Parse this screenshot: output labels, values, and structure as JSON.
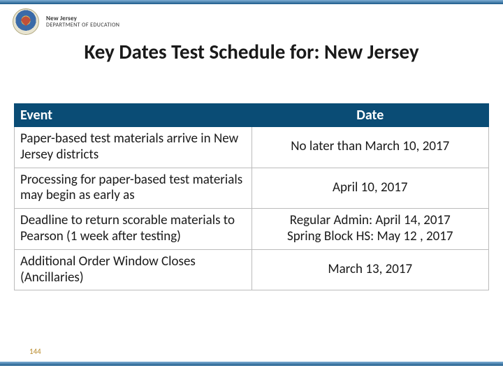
{
  "header": {
    "org_line1": "New Jersey",
    "org_line2": "DEPARTMENT OF EDUCATION"
  },
  "title": "Key Dates Test Schedule for: New Jersey",
  "table": {
    "columns": [
      "Event",
      "Date"
    ],
    "header_bg": "#0a4c75",
    "header_color": "#ffffff",
    "border_color": "#bbbbbb",
    "font_size_header": 20,
    "font_size_cell": 19,
    "rows": [
      {
        "event": "Paper-based test materials arrive in New Jersey districts",
        "date": "No later than March 10, 2017"
      },
      {
        "event": "Processing for paper-based test materials may begin as early as",
        "date": "April 10, 2017"
      },
      {
        "event": "Deadline to return scorable materials to Pearson (1 week after testing)",
        "date": "Regular Admin: April 14, 2017\nSpring Block HS: May 12 , 2017"
      },
      {
        "event": "Additional Order Window Closes (Ancillaries)",
        "date": "March 13, 2017"
      }
    ]
  },
  "page_number": "144",
  "colors": {
    "accent_gradient_top": "#7faed4",
    "accent_gradient_bottom": "#1c5a8a",
    "page_number_color": "#b88a2a",
    "text": "#1a1a1a",
    "background": "#ffffff"
  }
}
